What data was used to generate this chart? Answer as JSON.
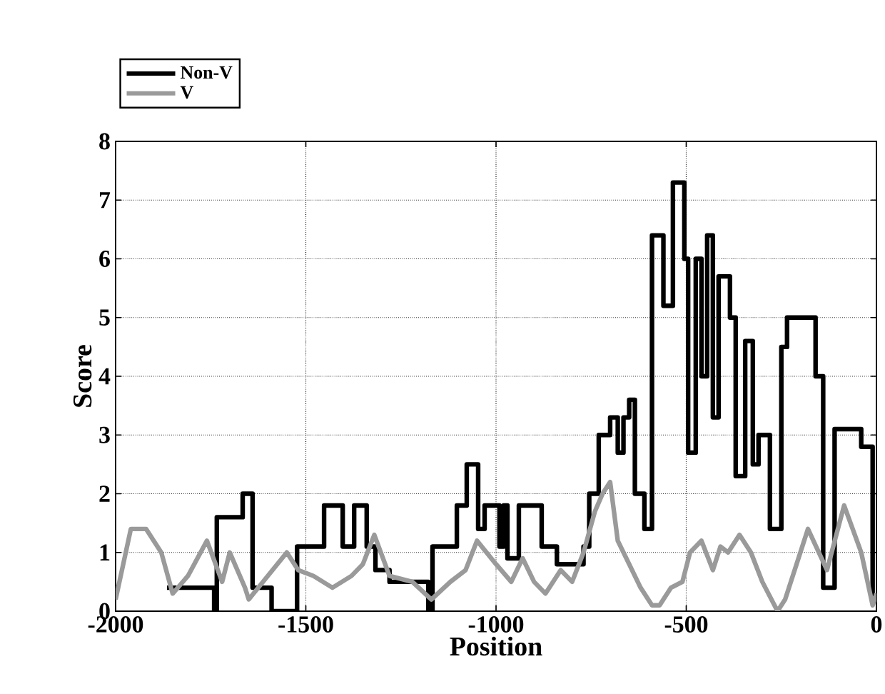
{
  "chart_data": {
    "type": "step",
    "xlabel": "Position",
    "ylabel": "Score",
    "xlim": [
      -2000,
      0
    ],
    "ylim": [
      0,
      8
    ],
    "xticks": [
      -2000,
      -1500,
      -1000,
      -500,
      0
    ],
    "yticks": [
      0,
      1,
      2,
      3,
      4,
      5,
      6,
      7,
      8
    ],
    "grid": true,
    "legend": "top left",
    "series": [
      {
        "name": "Non-V",
        "color": "#000000",
        "x": [
          -1865,
          -1741,
          -1734,
          -1666,
          -1640,
          -1590,
          -1523,
          -1452,
          -1403,
          -1373,
          -1340,
          -1317,
          -1280,
          -1178,
          -1167,
          -1103,
          -1077,
          -1047,
          -1030,
          -991,
          -980,
          -970,
          -940,
          -880,
          -840,
          -770,
          -755,
          -730,
          -700,
          -680,
          -665,
          -650,
          -635,
          -610,
          -590,
          -560,
          -535,
          -505,
          -495,
          -475,
          -460,
          -445,
          -430,
          -415,
          -385,
          -370,
          -345,
          -325,
          -310,
          -280,
          -250,
          -235,
          -160,
          -140,
          -110,
          -40,
          -10,
          0
        ],
        "values": [
          0.4,
          0,
          1.6,
          2.0,
          0.4,
          0,
          1.1,
          1.8,
          1.1,
          1.8,
          1.1,
          0.7,
          0.5,
          0,
          1.1,
          1.8,
          2.5,
          1.4,
          1.8,
          1.1,
          1.8,
          0.9,
          1.8,
          1.1,
          0.8,
          1.1,
          2.0,
          3.0,
          3.3,
          2.7,
          3.3,
          3.6,
          2.0,
          1.4,
          6.4,
          5.2,
          7.3,
          6.0,
          2.7,
          6.0,
          4.0,
          6.4,
          3.3,
          5.7,
          5.0,
          2.3,
          4.6,
          2.5,
          3.0,
          1.4,
          4.5,
          5.0,
          4.0,
          0.4,
          3.1,
          2.8,
          0.2,
          0.2
        ]
      },
      {
        "name": "V",
        "color": "#9a9a9a",
        "type": "line",
        "x": [
          -2000,
          -1960,
          -1920,
          -1880,
          -1850,
          -1810,
          -1760,
          -1720,
          -1700,
          -1660,
          -1650,
          -1600,
          -1550,
          -1520,
          -1480,
          -1430,
          -1380,
          -1350,
          -1320,
          -1280,
          -1220,
          -1170,
          -1120,
          -1080,
          -1050,
          -1000,
          -960,
          -930,
          -900,
          -870,
          -830,
          -800,
          -770,
          -740,
          -720,
          -700,
          -680,
          -650,
          -620,
          -590,
          -570,
          -540,
          -510,
          -490,
          -460,
          -430,
          -410,
          -390,
          -360,
          -330,
          -300,
          -260,
          -240,
          -210,
          -180,
          -130,
          -85,
          -40,
          -10,
          0
        ],
        "values": [
          0.2,
          1.4,
          1.4,
          1.0,
          0.3,
          0.6,
          1.2,
          0.5,
          1.0,
          0.4,
          0.2,
          0.6,
          1.0,
          0.7,
          0.6,
          0.4,
          0.6,
          0.8,
          1.3,
          0.6,
          0.5,
          0.2,
          0.5,
          0.7,
          1.2,
          0.8,
          0.5,
          0.9,
          0.5,
          0.3,
          0.7,
          0.5,
          1.0,
          1.7,
          2.0,
          2.2,
          1.2,
          0.8,
          0.4,
          0.1,
          0.1,
          0.4,
          0.5,
          1.0,
          1.2,
          0.7,
          1.1,
          1.0,
          1.3,
          1.0,
          0.5,
          0.0,
          0.2,
          0.8,
          1.4,
          0.7,
          1.8,
          1.0,
          0.1,
          0.3
        ]
      }
    ]
  }
}
